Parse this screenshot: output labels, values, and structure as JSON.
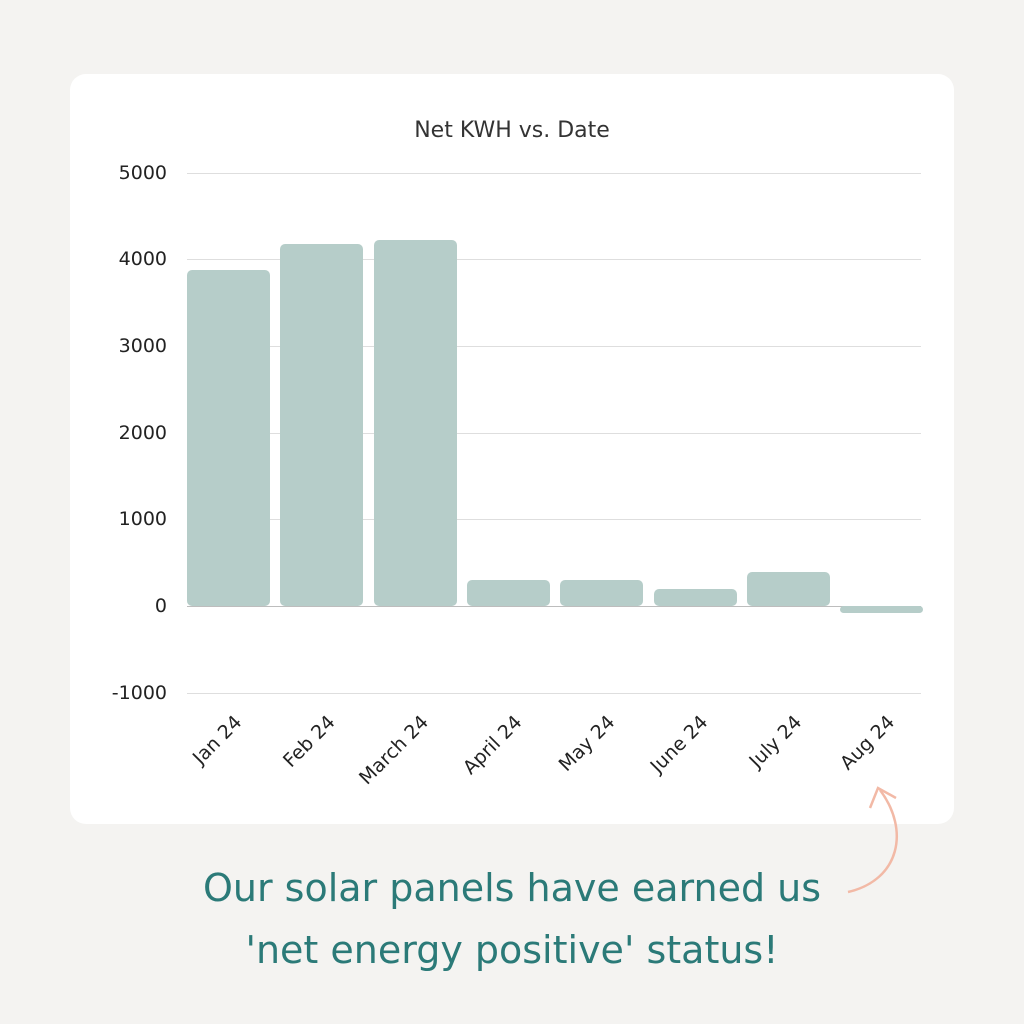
{
  "chart_data": {
    "type": "bar",
    "title": "Net KWH vs. Date",
    "xlabel": "",
    "ylabel": "",
    "categories": [
      "Jan 24",
      "Feb 24",
      "March 24",
      "April 24",
      "May 24",
      "June 24",
      "July 24",
      "Aug 24"
    ],
    "values": [
      3880,
      4180,
      4220,
      300,
      300,
      195,
      390,
      -80
    ],
    "ylim": [
      -1000,
      5000
    ],
    "yticks": [
      "5000",
      "4000",
      "3000",
      "2000",
      "1000",
      "0",
      "-1000"
    ],
    "grid": true,
    "bar_color": "#b6cdc9"
  },
  "caption": {
    "line1": "Our solar panels have earned us",
    "line2": "'net energy positive' status!",
    "color": "#2b7a78",
    "arrow_color": "#f2b9a6"
  }
}
